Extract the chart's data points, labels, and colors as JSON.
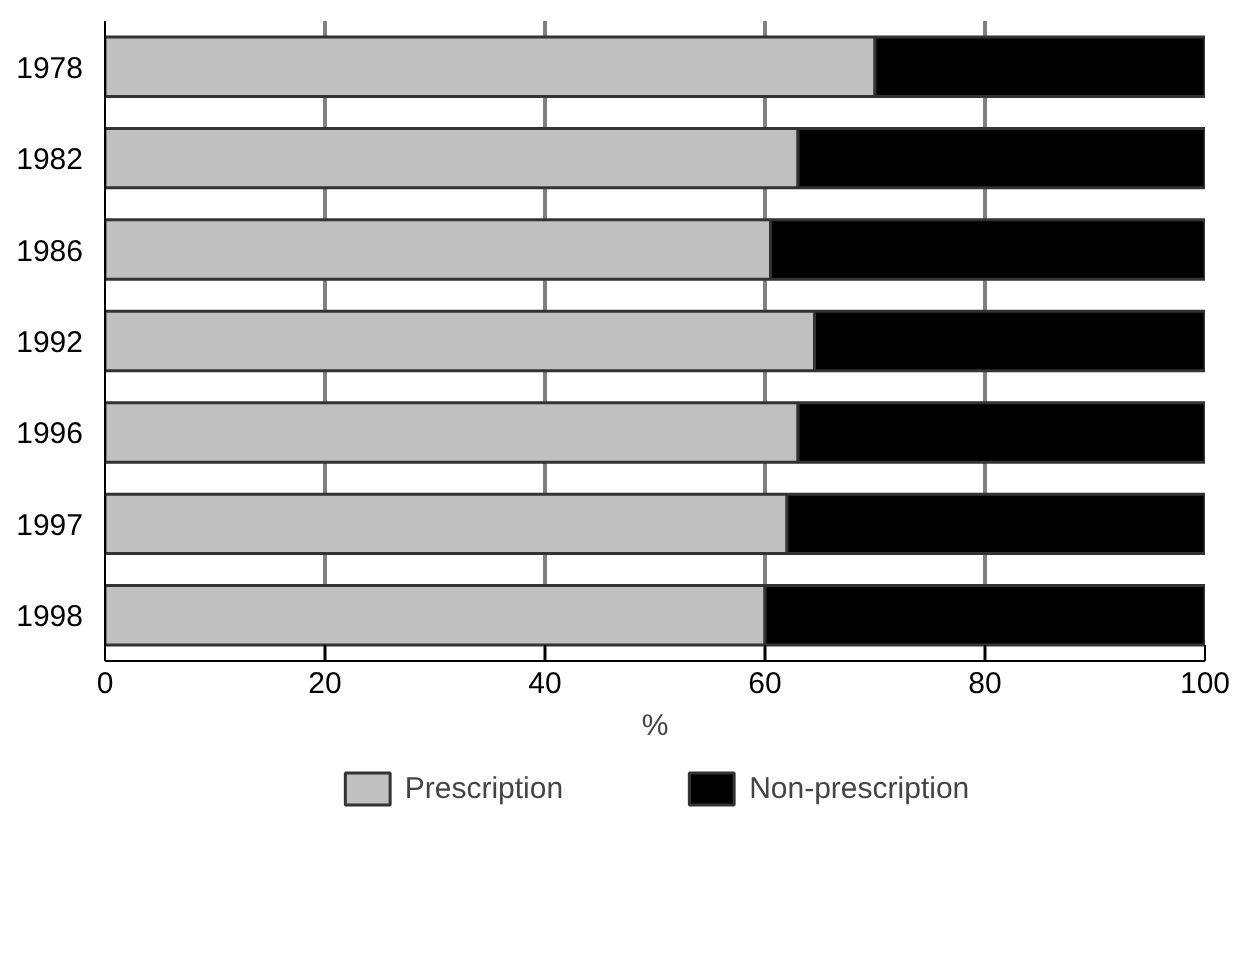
{
  "chart_data": {
    "type": "bar",
    "orientation": "horizontal",
    "stacked": true,
    "xlabel": "%",
    "categories": [
      "1978",
      "1982",
      "1986",
      "1992",
      "1996",
      "1997",
      "1998"
    ],
    "series": [
      {
        "name": "Prescription",
        "color": "#c0c0c0",
        "values": [
          70,
          63,
          60.5,
          64.5,
          63,
          62,
          60
        ]
      },
      {
        "name": "Non-prescription",
        "color": "#000000",
        "values": [
          30,
          37,
          39.5,
          35.5,
          37,
          38,
          40
        ]
      }
    ],
    "xlim": [
      0,
      100
    ],
    "xticks": [
      0,
      20,
      40,
      60,
      80,
      100
    ],
    "grid": "x",
    "legend": "bottom"
  }
}
